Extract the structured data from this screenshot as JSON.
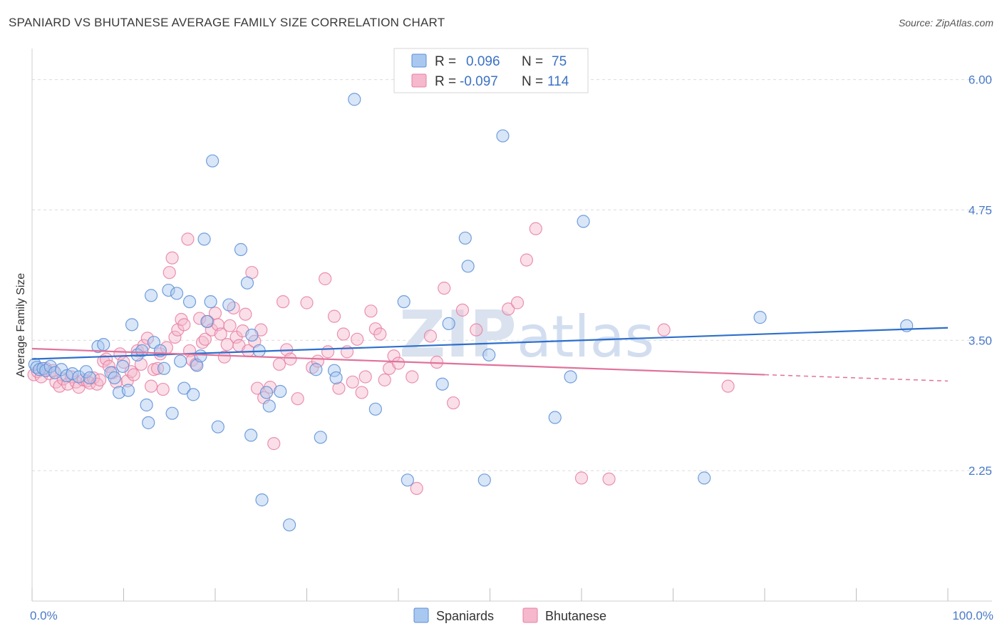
{
  "title": "SPANIARD VS BHUTANESE AVERAGE FAMILY SIZE CORRELATION CHART",
  "source": "Source: ZipAtlas.com",
  "watermark": {
    "zip": "ZIP",
    "atlas": "atlas"
  },
  "colors": {
    "blue_fill": "#a9c8f0",
    "blue_stroke": "#5b8ed6",
    "blue_line": "#2e6fcb",
    "pink_fill": "#f5b8cc",
    "pink_stroke": "#e77fa3",
    "pink_line": "#e0729b",
    "axis_text": "#4a7ac8",
    "grid": "#dcdcdc"
  },
  "legend": {
    "rows": [
      {
        "r_label": "R =",
        "r_value": "0.096",
        "n_label": "N =",
        "n_value": "75",
        "color": "blue"
      },
      {
        "r_label": "R =",
        "r_value": "-0.097",
        "n_label": "N =",
        "n_value": "114",
        "color": "pink"
      }
    ]
  },
  "bottom_legend": [
    {
      "label": "Spaniards",
      "color": "blue"
    },
    {
      "label": "Bhutanese",
      "color": "pink"
    }
  ],
  "chart_data": {
    "type": "scatter",
    "title": "SPANIARD VS BHUTANESE AVERAGE FAMILY SIZE CORRELATION CHART",
    "xlabel": "",
    "ylabel": "Average Family Size",
    "xlim": [
      0,
      100
    ],
    "ylim": [
      1.0,
      6.25
    ],
    "y_ticks": [
      {
        "value": 2.25,
        "label": "2.25"
      },
      {
        "value": 3.5,
        "label": "3.50"
      },
      {
        "value": 4.75,
        "label": "4.75"
      },
      {
        "value": 6.0,
        "label": "6.00"
      }
    ],
    "x_tick_labels": [
      {
        "value": 0,
        "label": "0.0%"
      },
      {
        "value": 100,
        "label": "100.0%"
      }
    ],
    "x_minor_ticks": [
      0,
      10,
      20,
      30,
      40,
      50,
      60,
      70,
      80,
      90,
      100
    ],
    "grid": true,
    "legend_placement": "top-center",
    "series": [
      {
        "name": "Spaniards",
        "color": "blue",
        "trend": {
          "x0": 0,
          "y0": 3.32,
          "x1": 100,
          "y1": 3.62
        },
        "points": [
          [
            0.3,
            3.27
          ],
          [
            0.5,
            3.24
          ],
          [
            0.8,
            3.22
          ],
          [
            1.2,
            3.23
          ],
          [
            1.5,
            3.21
          ],
          [
            2.0,
            3.25
          ],
          [
            2.5,
            3.19
          ],
          [
            3.2,
            3.22
          ],
          [
            3.8,
            3.16
          ],
          [
            4.4,
            3.18
          ],
          [
            5.1,
            3.15
          ],
          [
            5.9,
            3.2
          ],
          [
            6.3,
            3.14
          ],
          [
            7.2,
            3.44
          ],
          [
            7.8,
            3.46
          ],
          [
            8.6,
            3.19
          ],
          [
            9.0,
            3.14
          ],
          [
            9.5,
            3.0
          ],
          [
            9.9,
            3.25
          ],
          [
            10.5,
            3.02
          ],
          [
            10.9,
            3.65
          ],
          [
            11.5,
            3.36
          ],
          [
            12.0,
            3.4
          ],
          [
            12.5,
            2.88
          ],
          [
            12.7,
            2.71
          ],
          [
            13.0,
            3.93
          ],
          [
            13.3,
            3.48
          ],
          [
            14.0,
            3.4
          ],
          [
            14.4,
            3.23
          ],
          [
            14.9,
            3.98
          ],
          [
            15.3,
            2.8
          ],
          [
            15.8,
            3.95
          ],
          [
            16.2,
            3.3
          ],
          [
            16.6,
            3.04
          ],
          [
            17.2,
            3.87
          ],
          [
            17.6,
            2.98
          ],
          [
            18.0,
            3.26
          ],
          [
            18.4,
            3.35
          ],
          [
            18.8,
            4.47
          ],
          [
            19.1,
            3.68
          ],
          [
            19.5,
            3.87
          ],
          [
            19.7,
            5.22
          ],
          [
            20.3,
            2.67
          ],
          [
            21.5,
            3.84
          ],
          [
            22.8,
            4.37
          ],
          [
            23.5,
            4.05
          ],
          [
            24.0,
            3.55
          ],
          [
            23.9,
            2.59
          ],
          [
            24.8,
            3.4
          ],
          [
            25.1,
            1.97
          ],
          [
            25.6,
            3.0
          ],
          [
            25.9,
            2.87
          ],
          [
            27.1,
            3.01
          ],
          [
            28.1,
            1.73
          ],
          [
            31.0,
            3.22
          ],
          [
            31.5,
            2.57
          ],
          [
            33.0,
            3.21
          ],
          [
            33.2,
            3.14
          ],
          [
            35.2,
            5.81
          ],
          [
            37.5,
            2.84
          ],
          [
            40.6,
            3.87
          ],
          [
            41.0,
            2.16
          ],
          [
            44.8,
            3.08
          ],
          [
            45.5,
            3.66
          ],
          [
            47.3,
            4.48
          ],
          [
            47.6,
            4.21
          ],
          [
            49.4,
            2.16
          ],
          [
            49.9,
            3.36
          ],
          [
            51.4,
            5.46
          ],
          [
            57.1,
            2.76
          ],
          [
            58.8,
            3.15
          ],
          [
            60.2,
            4.64
          ],
          [
            73.4,
            2.18
          ],
          [
            79.5,
            3.72
          ],
          [
            95.5,
            3.64
          ]
        ]
      },
      {
        "name": "Bhutanese",
        "color": "pink",
        "trend": {
          "x0": 0,
          "y0": 3.42,
          "x1": 80,
          "y1": 3.17,
          "dash_to": {
            "x": 100,
            "y": 3.11
          }
        },
        "points": [
          [
            0.2,
            3.17
          ],
          [
            0.6,
            3.2
          ],
          [
            1.0,
            3.15
          ],
          [
            1.5,
            3.23
          ],
          [
            1.9,
            3.18
          ],
          [
            2.3,
            3.21
          ],
          [
            2.6,
            3.1
          ],
          [
            3.0,
            3.06
          ],
          [
            3.4,
            3.13
          ],
          [
            3.9,
            3.08
          ],
          [
            4.3,
            3.15
          ],
          [
            4.8,
            3.1
          ],
          [
            5.1,
            3.05
          ],
          [
            5.6,
            3.12
          ],
          [
            6.0,
            3.11
          ],
          [
            6.3,
            3.09
          ],
          [
            6.7,
            3.14
          ],
          [
            7.1,
            3.08
          ],
          [
            7.4,
            3.12
          ],
          [
            7.8,
            3.3
          ],
          [
            8.1,
            3.32
          ],
          [
            8.4,
            3.25
          ],
          [
            8.8,
            3.19
          ],
          [
            9.2,
            3.1
          ],
          [
            9.6,
            3.37
          ],
          [
            10.0,
            3.29
          ],
          [
            10.4,
            3.11
          ],
          [
            10.8,
            3.2
          ],
          [
            11.1,
            3.17
          ],
          [
            11.5,
            3.4
          ],
          [
            11.9,
            3.27
          ],
          [
            12.2,
            3.45
          ],
          [
            12.6,
            3.52
          ],
          [
            13.0,
            3.06
          ],
          [
            13.3,
            3.22
          ],
          [
            13.7,
            3.23
          ],
          [
            14.0,
            3.37
          ],
          [
            14.3,
            3.03
          ],
          [
            14.7,
            3.43
          ],
          [
            15.0,
            4.15
          ],
          [
            15.3,
            4.29
          ],
          [
            15.6,
            3.53
          ],
          [
            15.9,
            3.6
          ],
          [
            16.3,
            3.7
          ],
          [
            16.6,
            3.65
          ],
          [
            17.0,
            4.47
          ],
          [
            17.2,
            3.4
          ],
          [
            17.5,
            3.31
          ],
          [
            17.9,
            3.27
          ],
          [
            18.3,
            3.71
          ],
          [
            18.6,
            3.48
          ],
          [
            18.9,
            3.51
          ],
          [
            19.2,
            3.68
          ],
          [
            19.6,
            3.6
          ],
          [
            20.0,
            3.76
          ],
          [
            20.3,
            3.65
          ],
          [
            20.6,
            3.56
          ],
          [
            21.0,
            3.34
          ],
          [
            21.3,
            3.46
          ],
          [
            21.6,
            3.64
          ],
          [
            22.0,
            3.81
          ],
          [
            22.3,
            3.53
          ],
          [
            22.6,
            3.45
          ],
          [
            23.0,
            3.59
          ],
          [
            23.3,
            3.75
          ],
          [
            23.6,
            3.4
          ],
          [
            24.0,
            4.15
          ],
          [
            24.3,
            3.49
          ],
          [
            24.6,
            3.04
          ],
          [
            25.0,
            3.6
          ],
          [
            25.3,
            2.95
          ],
          [
            26.0,
            3.05
          ],
          [
            26.4,
            2.51
          ],
          [
            27.0,
            3.27
          ],
          [
            27.4,
            3.87
          ],
          [
            27.8,
            3.41
          ],
          [
            28.2,
            3.32
          ],
          [
            29.0,
            2.94
          ],
          [
            30.0,
            3.86
          ],
          [
            30.6,
            3.24
          ],
          [
            31.2,
            3.3
          ],
          [
            32.0,
            4.09
          ],
          [
            32.3,
            3.39
          ],
          [
            33.0,
            3.73
          ],
          [
            33.5,
            3.04
          ],
          [
            34.0,
            3.56
          ],
          [
            34.4,
            3.39
          ],
          [
            35.0,
            3.1
          ],
          [
            35.5,
            3.51
          ],
          [
            36.0,
            3.0
          ],
          [
            36.4,
            3.15
          ],
          [
            37.0,
            3.78
          ],
          [
            37.5,
            3.61
          ],
          [
            38.0,
            3.56
          ],
          [
            38.5,
            3.12
          ],
          [
            39.0,
            3.23
          ],
          [
            39.5,
            3.35
          ],
          [
            40.0,
            3.28
          ],
          [
            41.5,
            3.15
          ],
          [
            42.0,
            2.08
          ],
          [
            43.5,
            3.54
          ],
          [
            44.2,
            3.29
          ],
          [
            45.0,
            4.0
          ],
          [
            46.0,
            2.9
          ],
          [
            47.0,
            3.79
          ],
          [
            48.5,
            3.6
          ],
          [
            52.0,
            3.8
          ],
          [
            53.0,
            3.86
          ],
          [
            54.0,
            4.27
          ],
          [
            55.0,
            4.57
          ],
          [
            60.0,
            2.18
          ],
          [
            63.0,
            2.17
          ],
          [
            69.0,
            3.6
          ],
          [
            76.0,
            3.06
          ]
        ]
      }
    ]
  }
}
